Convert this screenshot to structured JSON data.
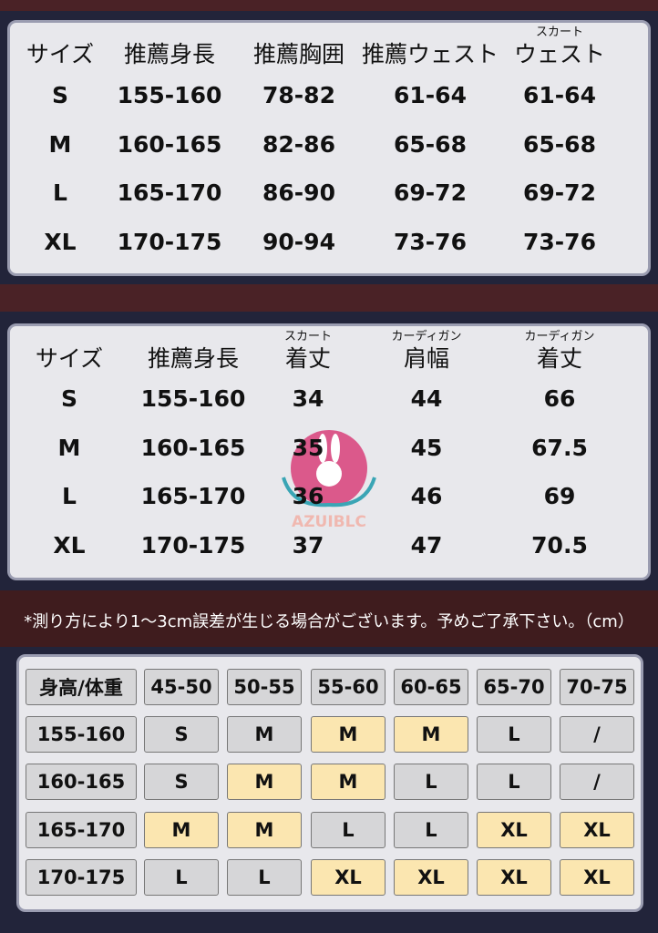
{
  "table1": {
    "headers": [
      "サイズ",
      "推薦身長",
      "推薦胸囲",
      "推薦ウェスト",
      "ウェスト"
    ],
    "header_ruby": {
      "4": "スカート"
    },
    "rows": [
      [
        "S",
        "155-160",
        "78-82",
        "61-64",
        "61-64"
      ],
      [
        "M",
        "160-165",
        "82-86",
        "65-68",
        "65-68"
      ],
      [
        "L",
        "165-170",
        "86-90",
        "69-72",
        "69-72"
      ],
      [
        "XL",
        "170-175",
        "90-94",
        "73-76",
        "73-76"
      ]
    ]
  },
  "table2": {
    "headers": [
      "サイズ",
      "推薦身長",
      "着丈",
      "肩幅",
      "着丈"
    ],
    "header_ruby": {
      "2": "スカート",
      "3": "カーディガン",
      "4": "カーディガン"
    },
    "rows": [
      [
        "S",
        "155-160",
        "34",
        "44",
        "66"
      ],
      [
        "M",
        "160-165",
        "35",
        "45",
        "67.5"
      ],
      [
        "L",
        "165-170",
        "36",
        "46",
        "69"
      ],
      [
        "XL",
        "170-175",
        "37",
        "47",
        "70.5"
      ]
    ]
  },
  "watermark": "AZUIBLC",
  "note": "*測り方により1～3cm誤差が生じる場合がございます。予めご了承下さい。（cm）",
  "table3": {
    "corner": "身高/体重",
    "weights": [
      "45-50",
      "50-55",
      "55-60",
      "60-65",
      "65-70",
      "70-75"
    ],
    "rows": [
      {
        "height": "155-160",
        "sizes": [
          "S",
          "M",
          "M",
          "M",
          "L",
          "/"
        ],
        "highlight": [
          false,
          false,
          true,
          true,
          false,
          false
        ]
      },
      {
        "height": "160-165",
        "sizes": [
          "S",
          "M",
          "M",
          "L",
          "L",
          "/"
        ],
        "highlight": [
          false,
          true,
          true,
          false,
          false,
          false
        ]
      },
      {
        "height": "165-170",
        "sizes": [
          "M",
          "M",
          "L",
          "L",
          "XL",
          "XL"
        ],
        "highlight": [
          true,
          true,
          false,
          false,
          true,
          true
        ]
      },
      {
        "height": "170-175",
        "sizes": [
          "L",
          "L",
          "XL",
          "XL",
          "XL",
          "XL"
        ],
        "highlight": [
          false,
          false,
          true,
          true,
          true,
          true
        ]
      }
    ]
  },
  "colors": {
    "highlight": "#fbe6b0",
    "cell": "#d6d6d8",
    "band": "#4a2226",
    "background": "#22243a"
  }
}
